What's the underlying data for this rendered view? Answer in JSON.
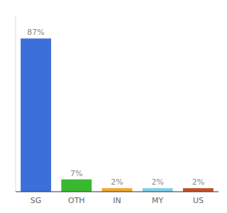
{
  "chart_data": {
    "type": "bar",
    "categories": [
      "SG",
      "OTH",
      "IN",
      "MY",
      "US"
    ],
    "values": [
      87,
      7,
      2,
      2,
      2
    ],
    "value_labels": [
      "87%",
      "7%",
      "2%",
      "2%",
      "2%"
    ],
    "colors": [
      "#3d6fdb",
      "#3ab830",
      "#f0a830",
      "#7ecfe8",
      "#c0522a"
    ],
    "ylim": [
      0,
      100
    ],
    "data_labels": true,
    "tick_labels": "x"
  }
}
